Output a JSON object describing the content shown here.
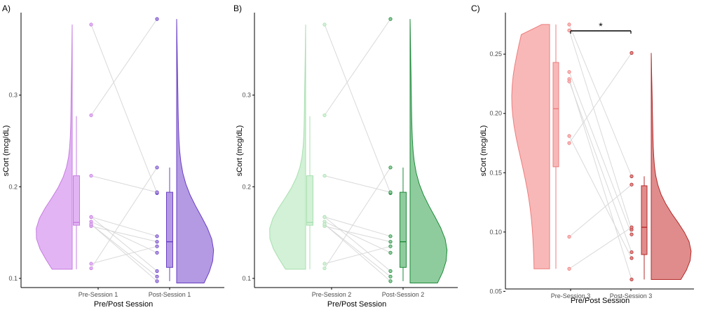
{
  "chart_data": [
    {
      "type": "raincloud",
      "panel_label": "A)",
      "xlabel": "Pre/Post Session",
      "ylabel": "sCort (mcg/dL)",
      "categories": [
        "Pre-Session 1",
        "Post-Session 1"
      ],
      "ylim": [
        0.09,
        0.39
      ],
      "yticks": [
        0.1,
        0.2,
        0.3
      ],
      "ytick_labels": [
        "0.1",
        "0.2",
        "0.3"
      ],
      "colors": {
        "pre_fill": "#e2b4f4",
        "pre_stroke": "#c77de0",
        "post_fill": "#b39ae3",
        "post_stroke": "#6a3fc4"
      },
      "pre_box": {
        "min": 0.11,
        "q1": 0.158,
        "median": 0.161,
        "q3": 0.212,
        "max": 0.277
      },
      "post_box": {
        "min": 0.097,
        "q1": 0.112,
        "median": 0.14,
        "q3": 0.194,
        "max": 0.221
      },
      "pre_violin_range": [
        0.11,
        0.377
      ],
      "post_violin_range": [
        0.095,
        0.383
      ],
      "pairs": [
        [
          0.377,
          0.193
        ],
        [
          0.278,
          0.383
        ],
        [
          0.212,
          0.194
        ],
        [
          0.167,
          0.146
        ],
        [
          0.162,
          0.128
        ],
        [
          0.159,
          0.102
        ],
        [
          0.157,
          0.14
        ],
        [
          0.116,
          0.135
        ],
        [
          0.111,
          0.221
        ],
        [
          0.167,
          0.108
        ],
        [
          0.159,
          0.097
        ]
      ],
      "significance": ""
    },
    {
      "type": "raincloud",
      "panel_label": "B)",
      "xlabel": "Pre/Post Session",
      "ylabel": "sCort (mcg/dL)",
      "categories": [
        "Pre-Session 2",
        "Post-Session 2"
      ],
      "ylim": [
        0.09,
        0.39
      ],
      "yticks": [
        0.1,
        0.2,
        0.3
      ],
      "ytick_labels": [
        "0.1",
        "0.2",
        "0.3"
      ],
      "colors": {
        "pre_fill": "#d2f1d6",
        "pre_stroke": "#a8dfb0",
        "post_fill": "#8fcc9d",
        "post_stroke": "#1e8a3a"
      },
      "pre_box": {
        "min": 0.11,
        "q1": 0.158,
        "median": 0.161,
        "q3": 0.212,
        "max": 0.277
      },
      "post_box": {
        "min": 0.097,
        "q1": 0.112,
        "median": 0.14,
        "q3": 0.194,
        "max": 0.221
      },
      "pre_violin_range": [
        0.11,
        0.377
      ],
      "post_violin_range": [
        0.095,
        0.383
      ],
      "pairs": [
        [
          0.377,
          0.193
        ],
        [
          0.278,
          0.383
        ],
        [
          0.212,
          0.194
        ],
        [
          0.167,
          0.146
        ],
        [
          0.162,
          0.128
        ],
        [
          0.159,
          0.102
        ],
        [
          0.157,
          0.14
        ],
        [
          0.116,
          0.135
        ],
        [
          0.111,
          0.221
        ],
        [
          0.167,
          0.108
        ],
        [
          0.159,
          0.097
        ]
      ],
      "significance": ""
    },
    {
      "type": "raincloud",
      "panel_label": "C)",
      "xlabel": "Pre/Post Session",
      "ylabel": "sCort (mcg/dL)",
      "categories": [
        "Pre-Session 3",
        "Post-Session 3"
      ],
      "ylim": [
        0.052,
        0.285
      ],
      "yticks": [
        0.05,
        0.1,
        0.15,
        0.2,
        0.25
      ],
      "ytick_labels": [
        "0.05",
        "0.10",
        "0.15",
        "0.20",
        "0.25"
      ],
      "colors": {
        "pre_fill": "#f9b8b8",
        "pre_stroke": "#ec7d7d",
        "post_fill": "#e08c8c",
        "post_stroke": "#b52a2a"
      },
      "pre_box": {
        "min": 0.069,
        "q1": 0.155,
        "median": 0.204,
        "q3": 0.243,
        "max": 0.275
      },
      "post_box": {
        "min": 0.06,
        "q1": 0.081,
        "median": 0.104,
        "q3": 0.139,
        "max": 0.147
      },
      "pre_violin_range": [
        0.069,
        0.275
      ],
      "post_violin_range": [
        0.06,
        0.251
      ],
      "pairs": [
        [
          0.275,
          0.147
        ],
        [
          0.27,
          0.102
        ],
        [
          0.235,
          0.098
        ],
        [
          0.229,
          0.06
        ],
        [
          0.227,
          0.083
        ],
        [
          0.181,
          0.078
        ],
        [
          0.175,
          0.251
        ],
        [
          0.096,
          0.14
        ],
        [
          0.069,
          0.104
        ]
      ],
      "significance": "*"
    }
  ]
}
